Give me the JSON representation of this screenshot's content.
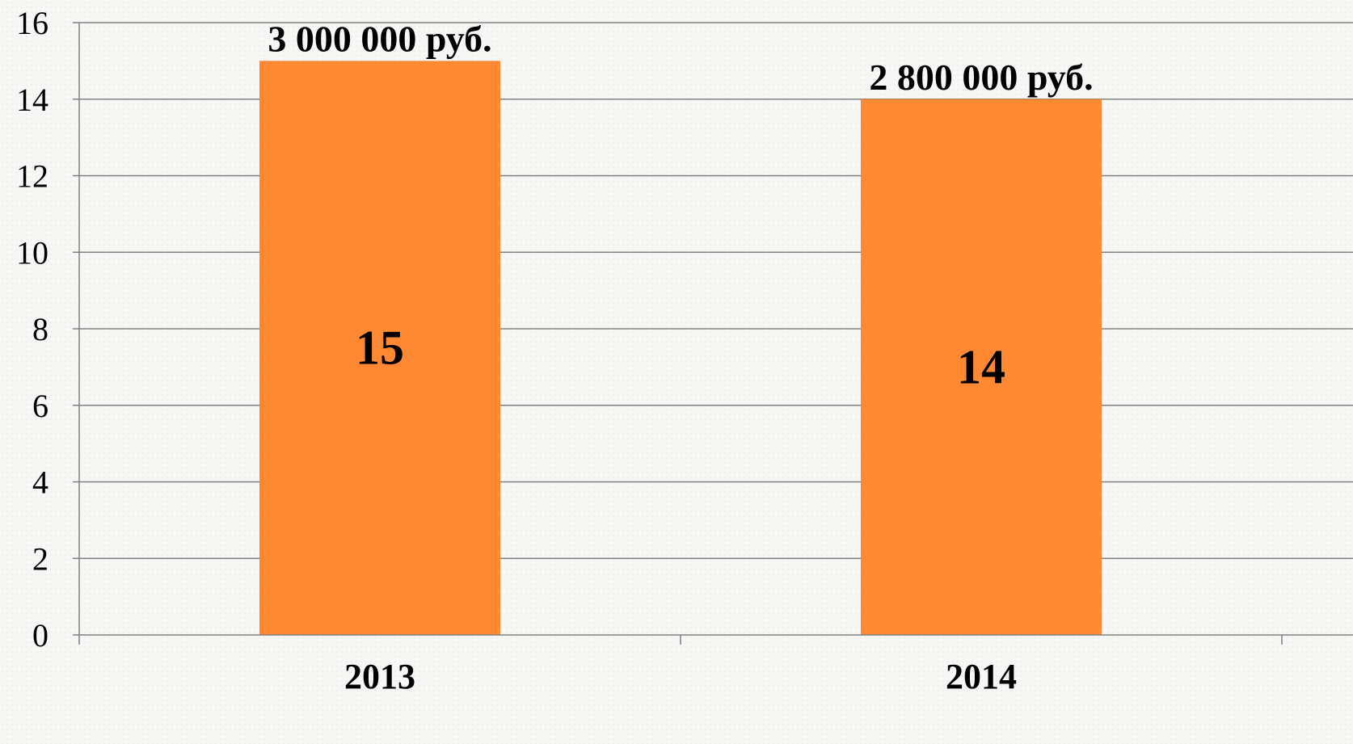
{
  "chart_data": {
    "type": "bar",
    "categories": [
      "2013",
      "2014"
    ],
    "values": [
      15,
      14
    ],
    "value_labels": [
      "15",
      "14"
    ],
    "annotations": [
      "3 000 000 руб.",
      "2 800 000 руб."
    ],
    "ylim": [
      0,
      16
    ],
    "yticks": [
      0,
      2,
      4,
      6,
      8,
      10,
      12,
      14,
      16
    ],
    "grid": true,
    "title": "",
    "xlabel": "",
    "ylabel": "",
    "colors": {
      "bar": "#FF8833",
      "grid": "#808080",
      "axis": "#808080",
      "text": "#000000"
    }
  }
}
